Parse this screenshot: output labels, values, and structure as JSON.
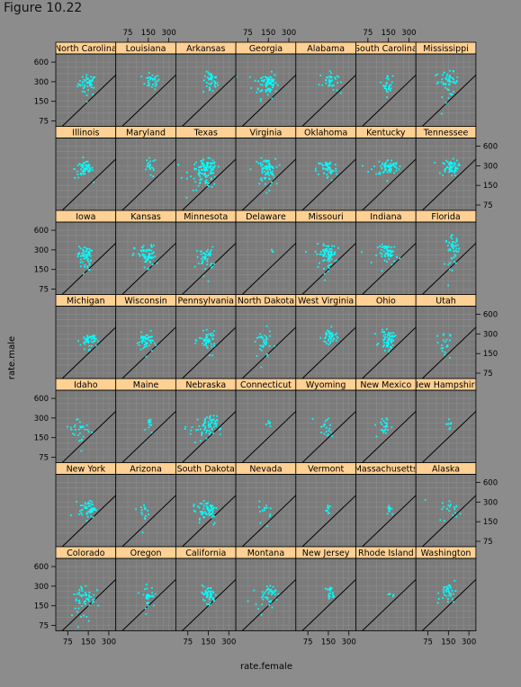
{
  "figure_title": "Figure 10.22",
  "chart_data": {
    "type": "scatter",
    "layout": "trellis",
    "xlabel": "rate.female",
    "ylabel": "rate.male",
    "scale": "log",
    "xlim": [
      50,
      380
    ],
    "ylim": [
      62,
      800
    ],
    "x_ticks": [
      75,
      150,
      300
    ],
    "y_ticks": [
      75,
      150,
      300,
      600
    ],
    "reference_line": "y = x",
    "grid": true,
    "colors": {
      "page": "#8c8c8c",
      "panel": "#7b7b7b",
      "strip": "#ffd093",
      "points": "#00ffff",
      "line": "#000000"
    },
    "panels": [
      {
        "name": "North Carolina",
        "cx": 150,
        "cy": 280,
        "sx": 22,
        "sy": 50,
        "n": 45
      },
      {
        "name": "Louisiana",
        "cx": 170,
        "cy": 310,
        "sx": 25,
        "sy": 40,
        "n": 30
      },
      {
        "name": "Arkansas",
        "cx": 165,
        "cy": 300,
        "sx": 20,
        "sy": 60,
        "n": 40
      },
      {
        "name": "Georgia",
        "cx": 145,
        "cy": 290,
        "sx": 28,
        "sy": 60,
        "n": 80
      },
      {
        "name": "Alabama",
        "cx": 160,
        "cy": 310,
        "sx": 25,
        "sy": 55,
        "n": 40
      },
      {
        "name": "South Carolina",
        "cx": 150,
        "cy": 280,
        "sx": 12,
        "sy": 50,
        "n": 25
      },
      {
        "name": "Mississippi",
        "cx": 150,
        "cy": 300,
        "sx": 30,
        "sy": 60,
        "n": 50
      },
      {
        "name": "Illinois",
        "cx": 135,
        "cy": 270,
        "sx": 20,
        "sy": 40,
        "n": 60
      },
      {
        "name": "Maryland",
        "cx": 160,
        "cy": 290,
        "sx": 18,
        "sy": 50,
        "n": 20
      },
      {
        "name": "Texas",
        "cx": 140,
        "cy": 250,
        "sx": 30,
        "sy": 60,
        "n": 120
      },
      {
        "name": "Virginia",
        "cx": 140,
        "cy": 260,
        "sx": 25,
        "sy": 60,
        "n": 80
      },
      {
        "name": "Oklahoma",
        "cx": 150,
        "cy": 270,
        "sx": 25,
        "sy": 50,
        "n": 50
      },
      {
        "name": "Kentucky",
        "cx": 150,
        "cy": 290,
        "sx": 30,
        "sy": 40,
        "n": 70
      },
      {
        "name": "Tennessee",
        "cx": 160,
        "cy": 290,
        "sx": 25,
        "sy": 40,
        "n": 60
      },
      {
        "name": "Iowa",
        "cx": 135,
        "cy": 240,
        "sx": 15,
        "sy": 50,
        "n": 60
      },
      {
        "name": "Kansas",
        "cx": 145,
        "cy": 240,
        "sx": 25,
        "sy": 55,
        "n": 70
      },
      {
        "name": "Minnesota",
        "cx": 140,
        "cy": 230,
        "sx": 20,
        "sy": 50,
        "n": 45
      },
      {
        "name": "Delaware",
        "cx": 170,
        "cy": 290,
        "sx": 4,
        "sy": 15,
        "n": 3
      },
      {
        "name": "Missouri",
        "cx": 145,
        "cy": 260,
        "sx": 25,
        "sy": 50,
        "n": 80
      },
      {
        "name": "Indiana",
        "cx": 155,
        "cy": 270,
        "sx": 25,
        "sy": 45,
        "n": 60
      },
      {
        "name": "Florida",
        "cx": 175,
        "cy": 320,
        "sx": 20,
        "sy": 80,
        "n": 50
      },
      {
        "name": "Michigan",
        "cx": 155,
        "cy": 240,
        "sx": 20,
        "sy": 30,
        "n": 50
      },
      {
        "name": "Wisconsin",
        "cx": 140,
        "cy": 230,
        "sx": 20,
        "sy": 40,
        "n": 50
      },
      {
        "name": "Pennsylvania",
        "cx": 150,
        "cy": 240,
        "sx": 20,
        "sy": 40,
        "n": 50
      },
      {
        "name": "North Dakota",
        "cx": 125,
        "cy": 220,
        "sx": 20,
        "sy": 60,
        "n": 35
      },
      {
        "name": "West Virginia",
        "cx": 160,
        "cy": 270,
        "sx": 20,
        "sy": 45,
        "n": 45
      },
      {
        "name": "Ohio",
        "cx": 150,
        "cy": 250,
        "sx": 18,
        "sy": 40,
        "n": 60
      },
      {
        "name": "Utah",
        "cx": 130,
        "cy": 220,
        "sx": 15,
        "sy": 50,
        "n": 20
      },
      {
        "name": "Idaho",
        "cx": 115,
        "cy": 210,
        "sx": 25,
        "sy": 50,
        "n": 30
      },
      {
        "name": "Maine",
        "cx": 155,
        "cy": 245,
        "sx": 8,
        "sy": 30,
        "n": 12
      },
      {
        "name": "Nebraska",
        "cx": 140,
        "cy": 220,
        "sx": 30,
        "sy": 50,
        "n": 70
      },
      {
        "name": "Connecticut",
        "cx": 150,
        "cy": 230,
        "sx": 6,
        "sy": 20,
        "n": 6
      },
      {
        "name": "Wyoming",
        "cx": 140,
        "cy": 220,
        "sx": 20,
        "sy": 45,
        "n": 20
      },
      {
        "name": "New Mexico",
        "cx": 130,
        "cy": 220,
        "sx": 18,
        "sy": 45,
        "n": 25
      },
      {
        "name": "New Hampshire",
        "cx": 160,
        "cy": 245,
        "sx": 8,
        "sy": 20,
        "n": 8
      },
      {
        "name": "New York",
        "cx": 150,
        "cy": 240,
        "sx": 20,
        "sy": 35,
        "n": 55
      },
      {
        "name": "Arizona",
        "cx": 130,
        "cy": 210,
        "sx": 12,
        "sy": 45,
        "n": 15
      },
      {
        "name": "South Dakota",
        "cx": 145,
        "cy": 230,
        "sx": 30,
        "sy": 50,
        "n": 60
      },
      {
        "name": "Nevada",
        "cx": 140,
        "cy": 230,
        "sx": 15,
        "sy": 40,
        "n": 15
      },
      {
        "name": "Vermont",
        "cx": 150,
        "cy": 220,
        "sx": 8,
        "sy": 30,
        "n": 12
      },
      {
        "name": "Massachusetts",
        "cx": 155,
        "cy": 240,
        "sx": 6,
        "sy": 20,
        "n": 12
      },
      {
        "name": "Alaska",
        "cx": 170,
        "cy": 230,
        "sx": 30,
        "sy": 45,
        "n": 20
      },
      {
        "name": "Colorado",
        "cx": 135,
        "cy": 200,
        "sx": 28,
        "sy": 60,
        "n": 55
      },
      {
        "name": "Oregon",
        "cx": 150,
        "cy": 220,
        "sx": 18,
        "sy": 40,
        "n": 30
      },
      {
        "name": "California",
        "cx": 150,
        "cy": 220,
        "sx": 20,
        "sy": 40,
        "n": 50
      },
      {
        "name": "Montana",
        "cx": 145,
        "cy": 230,
        "sx": 25,
        "sy": 40,
        "n": 45
      },
      {
        "name": "New Jersey",
        "cx": 165,
        "cy": 230,
        "sx": 12,
        "sy": 30,
        "n": 20
      },
      {
        "name": "Rhode Island",
        "cx": 165,
        "cy": 225,
        "sx": 10,
        "sy": 10,
        "n": 5
      },
      {
        "name": "Washington",
        "cx": 150,
        "cy": 240,
        "sx": 22,
        "sy": 45,
        "n": 35
      }
    ]
  }
}
